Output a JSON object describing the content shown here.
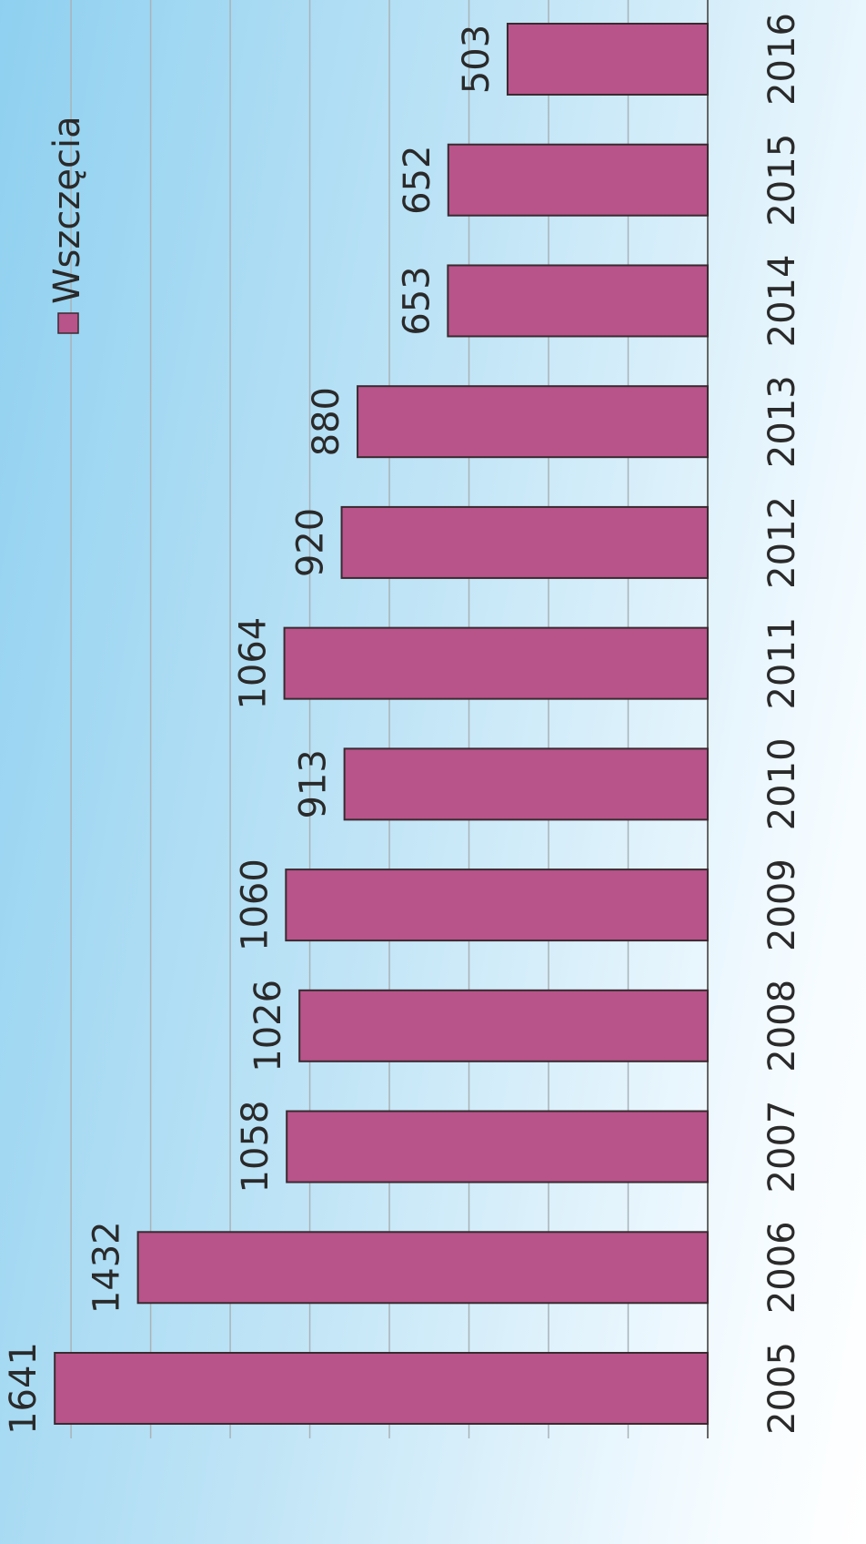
{
  "chart_data": {
    "type": "bar",
    "categories": [
      "2005",
      "2006",
      "2007",
      "2008",
      "2009",
      "2010",
      "2011",
      "2012",
      "2013",
      "2014",
      "2015",
      "2016"
    ],
    "series": [
      {
        "name": "Wszczęcia",
        "color": "#b8548a",
        "values": [
          1641,
          1432,
          1058,
          1026,
          1060,
          913,
          1064,
          920,
          880,
          653,
          652,
          503
        ]
      }
    ],
    "ylim": [
      0,
      1790
    ],
    "yticks": [
      0,
      200,
      400,
      600,
      800,
      1000,
      1200,
      1400,
      1600
    ],
    "grid": true,
    "legend": "top"
  }
}
